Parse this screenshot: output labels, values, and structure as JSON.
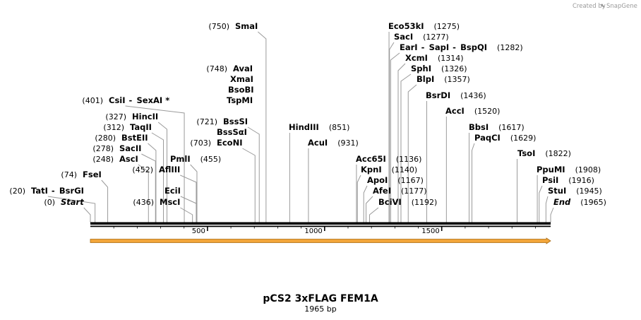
{
  "credit": {
    "prefix": "Created by",
    "brand": "SnapGene"
  },
  "title": "pCS2 3xFLAG FEM1A",
  "subtitle": "1965 bp",
  "length": 1965,
  "colors": {
    "feature_fill": "#f2a53a",
    "feature_stroke": "#a86a10",
    "line": "#9a9a9a"
  },
  "axis_ticks": [
    {
      "pos": 500,
      "label": "500"
    },
    {
      "pos": 1000,
      "label": "1000"
    },
    {
      "pos": 1500,
      "label": "1500"
    }
  ],
  "feature": {
    "name": "orange-feature-arrow",
    "start": 0,
    "end": 1965,
    "direction": "forward"
  },
  "sites": [
    {
      "name": "Start",
      "pos": 0,
      "pos_label": "(0)",
      "italic": true
    },
    {
      "name": "TatI",
      "pos": 20,
      "pos_label": "(20)",
      "extra": [
        "BsrGI"
      ]
    },
    {
      "name": "FseI",
      "pos": 74,
      "pos_label": "(74)"
    },
    {
      "name": "AscI",
      "pos": 248,
      "pos_label": "(248)"
    },
    {
      "name": "SacII",
      "pos": 278,
      "pos_label": "(278)"
    },
    {
      "name": "BstEII",
      "pos": 280,
      "pos_label": "(280)"
    },
    {
      "name": "TaqII",
      "pos": 312,
      "pos_label": "(312)"
    },
    {
      "name": "HincII",
      "pos": 327,
      "pos_label": "(327)"
    },
    {
      "name": "CsiI",
      "pos": 401,
      "pos_label": "(401)",
      "extra": [
        "SexAI *"
      ]
    },
    {
      "name": "MscI",
      "pos": 436,
      "pos_label": "(436)"
    },
    {
      "name": "AflIII",
      "pos": 452,
      "pos_label": "(452)"
    },
    {
      "name": "EciI",
      "pos": 452,
      "pos_label": ""
    },
    {
      "name": "PmlI",
      "pos": 455,
      "pos_label": "(455)"
    },
    {
      "name": "EcoNI",
      "pos": 703,
      "pos_label": "(703)"
    },
    {
      "name": "BssSI",
      "pos": 721,
      "pos_label": "(721)"
    },
    {
      "name": "BssSαI",
      "pos": 721,
      "pos_label": ""
    },
    {
      "name": "TspMI",
      "pos": 748,
      "pos_label": ""
    },
    {
      "name": "BsoBI",
      "pos": 748,
      "pos_label": ""
    },
    {
      "name": "XmaI",
      "pos": 748,
      "pos_label": ""
    },
    {
      "name": "AvaI",
      "pos": 748,
      "pos_label": "(748)"
    },
    {
      "name": "SmaI",
      "pos": 750,
      "pos_label": "(750)"
    },
    {
      "name": "HindIII",
      "pos": 851,
      "pos_label": "(851)"
    },
    {
      "name": "AcuI",
      "pos": 931,
      "pos_label": "(931)"
    },
    {
      "name": "Acc65I",
      "pos": 1136,
      "pos_label": "(1136)"
    },
    {
      "name": "KpnI",
      "pos": 1140,
      "pos_label": "(1140)"
    },
    {
      "name": "ApoI",
      "pos": 1167,
      "pos_label": "(1167)"
    },
    {
      "name": "AfeI",
      "pos": 1177,
      "pos_label": "(1177)"
    },
    {
      "name": "BciVI",
      "pos": 1192,
      "pos_label": "(1192)"
    },
    {
      "name": "Eco53kI",
      "pos": 1275,
      "pos_label": "(1275)"
    },
    {
      "name": "SacI",
      "pos": 1277,
      "pos_label": "(1277)"
    },
    {
      "name": "EarI",
      "pos": 1282,
      "pos_label": "(1282)",
      "extra": [
        "SapI",
        "BspQI"
      ]
    },
    {
      "name": "XcmI",
      "pos": 1314,
      "pos_label": "(1314)"
    },
    {
      "name": "SphI",
      "pos": 1326,
      "pos_label": "(1326)"
    },
    {
      "name": "BlpI",
      "pos": 1357,
      "pos_label": "(1357)"
    },
    {
      "name": "BsrDI",
      "pos": 1436,
      "pos_label": "(1436)"
    },
    {
      "name": "AccI",
      "pos": 1520,
      "pos_label": "(1520)"
    },
    {
      "name": "BbsI",
      "pos": 1617,
      "pos_label": "(1617)"
    },
    {
      "name": "PaqCI",
      "pos": 1629,
      "pos_label": "(1629)"
    },
    {
      "name": "TsoI",
      "pos": 1822,
      "pos_label": "(1822)"
    },
    {
      "name": "PpuMI",
      "pos": 1908,
      "pos_label": "(1908)"
    },
    {
      "name": "PsiI",
      "pos": 1916,
      "pos_label": "(1916)"
    },
    {
      "name": "StuI",
      "pos": 1945,
      "pos_label": "(1945)"
    },
    {
      "name": "End",
      "pos": 1965,
      "pos_label": "(1965)",
      "italic": true
    }
  ]
}
